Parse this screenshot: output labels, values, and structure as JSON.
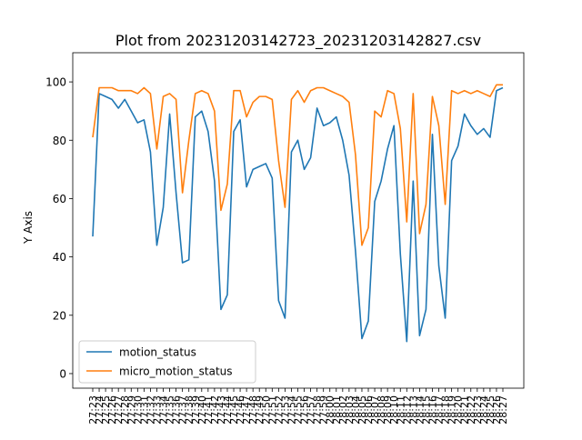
{
  "chart_data": {
    "type": "line",
    "title": "Plot from 20231203142723_20231203142827.csv",
    "xlabel": "",
    "ylabel": "Y Axis",
    "ylim": [
      -5,
      110
    ],
    "yticks": [
      0,
      20,
      40,
      60,
      80,
      100
    ],
    "x": [
      "27:23",
      "27:24",
      "27:25",
      "27:26",
      "27:27",
      "27:28",
      "27:29",
      "27:30",
      "27:31",
      "27:32",
      "27:33",
      "27:34",
      "27:35",
      "27:36",
      "27:37",
      "27:38",
      "27:39",
      "27:40",
      "27:41",
      "27:42",
      "27:43",
      "27:44",
      "27:45",
      "27:46",
      "27:47",
      "27:48",
      "27:49",
      "27:50",
      "27:51",
      "27:52",
      "27:53",
      "27:54",
      "27:55",
      "27:56",
      "27:57",
      "27:58",
      "27:59",
      "28:00",
      "28:01",
      "28:02",
      "28:03",
      "28:04",
      "28:05",
      "28:06",
      "28:07",
      "28:08",
      "28:09",
      "28:10",
      "28:11",
      "28:12",
      "28:13",
      "28:14",
      "28:15",
      "28:16",
      "28:17",
      "28:18",
      "28:19",
      "28:20",
      "28:21",
      "28:22",
      "28:23",
      "28:24",
      "28:25",
      "28:26",
      "28:27"
    ],
    "series": [
      {
        "name": "motion_status",
        "color": "#1f77b4",
        "values": [
          47,
          96,
          95,
          94,
          91,
          94,
          90,
          86,
          87,
          76,
          44,
          57,
          89,
          62,
          38,
          39,
          88,
          90,
          83,
          66,
          22,
          27,
          83,
          87,
          64,
          70,
          71,
          72,
          67,
          25,
          19,
          76,
          80,
          70,
          74,
          91,
          85,
          86,
          88,
          80,
          68,
          42,
          12,
          18,
          59,
          66,
          77,
          85,
          41,
          11,
          66,
          13,
          22,
          82,
          37,
          19,
          73,
          78,
          89,
          85,
          82,
          84,
          81,
          97,
          98
        ]
      },
      {
        "name": "micro_motion_status",
        "color": "#ff7f0e",
        "values": [
          81,
          98,
          98,
          98,
          97,
          97,
          97,
          96,
          98,
          96,
          77,
          95,
          96,
          94,
          62,
          80,
          96,
          97,
          96,
          90,
          56,
          65,
          97,
          97,
          88,
          93,
          95,
          95,
          94,
          73,
          57,
          94,
          97,
          93,
          97,
          98,
          98,
          97,
          96,
          95,
          93,
          75,
          44,
          50,
          90,
          88,
          97,
          96,
          84,
          52,
          96,
          48,
          58,
          95,
          85,
          58,
          97,
          96,
          97,
          96,
          97,
          96,
          95,
          99,
          99
        ]
      }
    ],
    "legend": "lower-left",
    "grid": false
  }
}
